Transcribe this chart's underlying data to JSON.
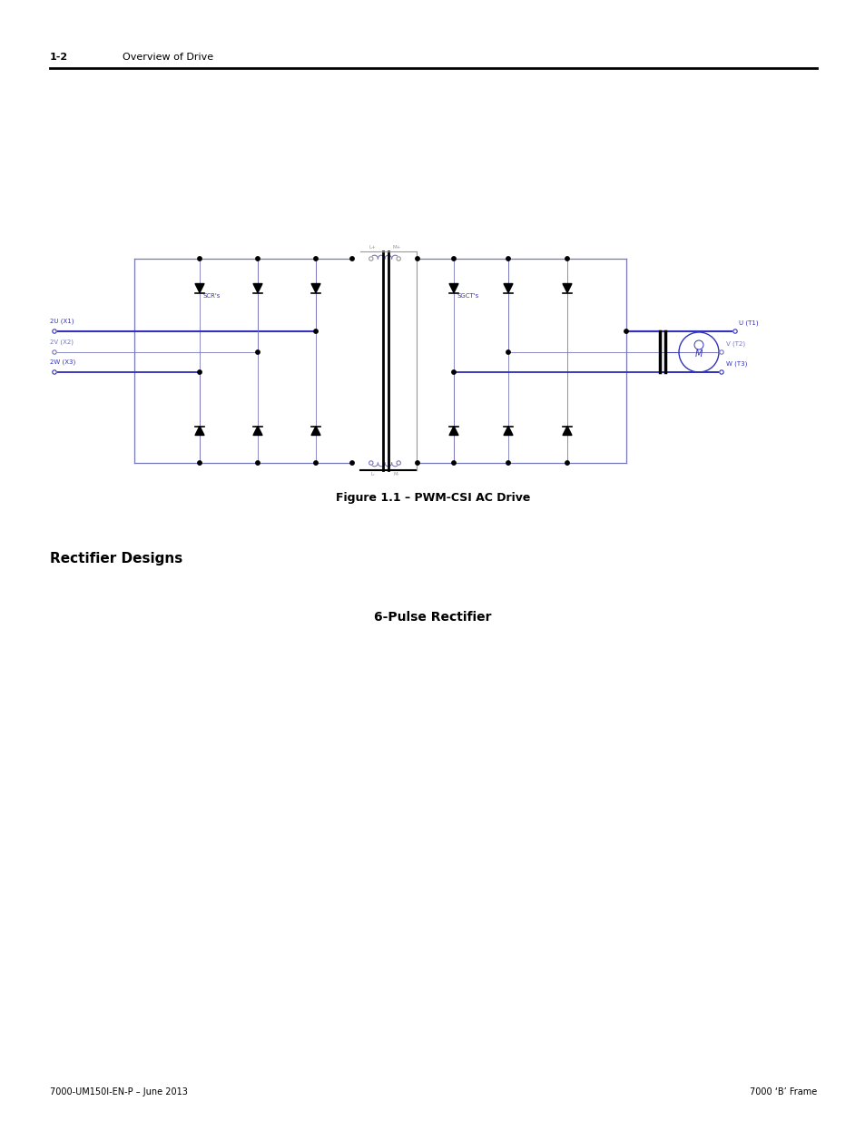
{
  "page_width": 9.54,
  "page_height": 12.35,
  "bg_color": "#ffffff",
  "header_text_left": "1-2",
  "header_text_right": "Overview of Drive",
  "footer_text_left": "7000-UM150I-EN-P – June 2013",
  "footer_text_right": "7000 ‘B’ Frame",
  "section_title": "Rectifier Designs",
  "subsection_title": "6-Pulse Rectifier",
  "figure_caption": "Figure 1.1 – PWM-CSI AC Drive",
  "circuit_blue": "#3333bb",
  "circuit_light_blue": "#7777bb",
  "circuit_black": "#000000",
  "circuit_gray": "#999999",
  "circuit_dark_blue": "#000066"
}
